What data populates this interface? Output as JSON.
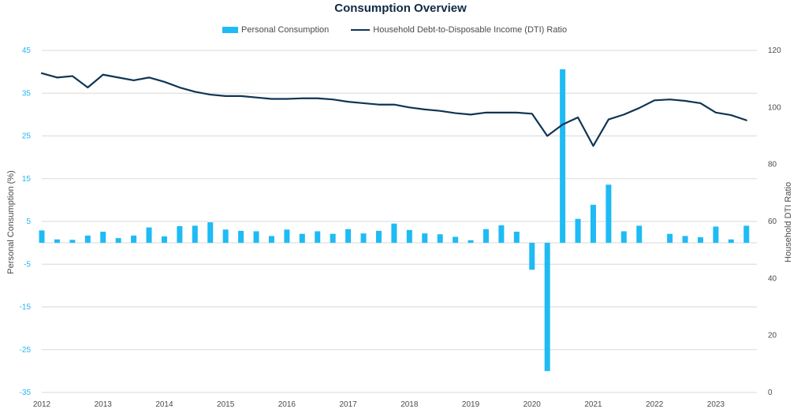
{
  "title": "Consumption Overview",
  "colors": {
    "bar": "#1EBBF5",
    "line": "#0F3553",
    "grid": "#D9D9D9",
    "left_tick": "#27B6F0"
  },
  "chart_data": {
    "type": "bar",
    "title": "Consumption Overview",
    "ylabel": "Personal Consumption (%)",
    "y2label": "Household DTI Ratio",
    "ylim": [
      -35,
      45
    ],
    "y2lim": [
      0,
      120
    ],
    "xlim": [
      2012,
      2023.67
    ],
    "grid": true,
    "legend_placement": "top-center",
    "xticks": [
      "2012",
      "2013",
      "2014",
      "2015",
      "2016",
      "2017",
      "2018",
      "2019",
      "2020",
      "2021",
      "2022",
      "2023"
    ],
    "yticks": [
      "45",
      "35",
      "25",
      "15",
      "5",
      "-5",
      "-15",
      "-25",
      "-35"
    ],
    "y2ticks": [
      "120",
      "100",
      "80",
      "60",
      "40",
      "20",
      "0"
    ],
    "series": [
      {
        "name": "Personal Consumption",
        "type": "bar",
        "axis": "left",
        "x": [
          2012,
          2012.25,
          2012.5,
          2012.75,
          2013,
          2013.25,
          2013.5,
          2013.75,
          2014,
          2014.25,
          2014.5,
          2014.75,
          2015,
          2015.25,
          2015.5,
          2015.75,
          2016,
          2016.25,
          2016.5,
          2016.75,
          2017,
          2017.25,
          2017.5,
          2017.75,
          2018,
          2018.25,
          2018.5,
          2018.75,
          2019,
          2019.25,
          2019.5,
          2019.75,
          2020,
          2020.25,
          2020.5,
          2020.75,
          2021,
          2021.25,
          2021.5,
          2021.75,
          2022,
          2022.25,
          2022.5,
          2022.75,
          2023,
          2023.25,
          2023.5
        ],
        "values": [
          2.9,
          0.8,
          0.7,
          1.7,
          2.6,
          1.1,
          1.7,
          3.6,
          1.5,
          3.9,
          4.0,
          4.8,
          3.1,
          2.8,
          2.7,
          1.6,
          3.1,
          2.1,
          2.7,
          2.1,
          3.2,
          2.2,
          2.8,
          4.5,
          3.0,
          2.2,
          2.0,
          1.4,
          0.6,
          3.2,
          4.1,
          2.6,
          -6.3,
          -30.0,
          40.6,
          5.6,
          8.9,
          13.6,
          2.7,
          4.0,
          0.0,
          2.1,
          1.6,
          1.3,
          3.8,
          0.8,
          4.0
        ]
      },
      {
        "name": "Household Debt-to-Disposable Income (DTI) Ratio",
        "type": "line",
        "axis": "right",
        "x": [
          2012,
          2012.25,
          2012.5,
          2012.75,
          2013,
          2013.25,
          2013.5,
          2013.75,
          2014,
          2014.25,
          2014.5,
          2014.75,
          2015,
          2015.25,
          2015.5,
          2015.75,
          2016,
          2016.25,
          2016.5,
          2016.75,
          2017,
          2017.25,
          2017.5,
          2017.75,
          2018,
          2018.25,
          2018.5,
          2018.75,
          2019,
          2019.25,
          2019.5,
          2019.75,
          2020,
          2020.25,
          2020.5,
          2020.75,
          2021,
          2021.25,
          2021.5,
          2021.75,
          2022,
          2022.25,
          2022.5,
          2022.75,
          2023,
          2023.25,
          2023.5
        ],
        "values": [
          112.0,
          110.5,
          111.0,
          107.0,
          111.5,
          110.5,
          109.5,
          110.5,
          109.0,
          107.0,
          105.5,
          104.5,
          104.0,
          104.0,
          103.5,
          103.0,
          103.0,
          103.2,
          103.2,
          102.8,
          102.0,
          101.5,
          101.0,
          101.0,
          100.0,
          99.3,
          98.8,
          98.0,
          97.5,
          98.2,
          98.2,
          98.2,
          97.8,
          90.0,
          94.0,
          96.5,
          86.5,
          95.8,
          97.5,
          99.8,
          102.5,
          102.8,
          102.3,
          101.5,
          98.2,
          97.3,
          95.5
        ]
      }
    ]
  }
}
